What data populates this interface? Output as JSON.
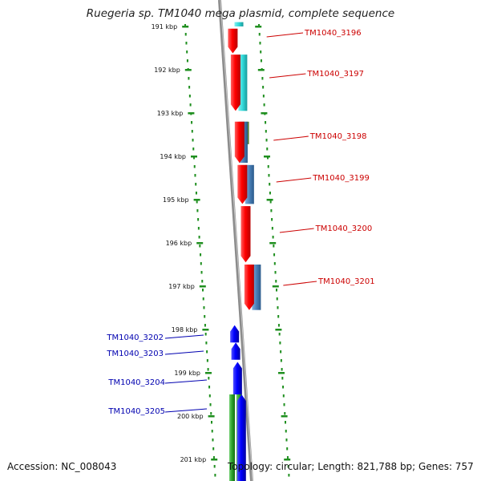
{
  "title": "Ruegeria sp. TM1040 mega plasmid, complete sequence",
  "footer": {
    "accession": "Accession: NC_008043",
    "summary": "Topology: circular; Length: 821,788 bp; Genes: 757"
  },
  "colors": {
    "backbone": "#8c8c8c",
    "tick": "#1f8f1f",
    "forward_label": "#cc0000",
    "reverse_label": "#0000b0",
    "red": "#ff0000",
    "cyan": "#30d8d8",
    "olive": "#6a9a3a",
    "steel": "#4a80b8",
    "blue": "#0000ff",
    "green": "#2aa02a"
  },
  "ticks": [
    {
      "kbp": 191,
      "label": "191 kbp"
    },
    {
      "kbp": 192,
      "label": "192 kbp"
    },
    {
      "kbp": 193,
      "label": "193 kbp"
    },
    {
      "kbp": 194,
      "label": "194 kbp"
    },
    {
      "kbp": 195,
      "label": "195 kbp"
    },
    {
      "kbp": 196,
      "label": "196 kbp"
    },
    {
      "kbp": 197,
      "label": "197 kbp"
    },
    {
      "kbp": 198,
      "label": "198 kbp"
    },
    {
      "kbp": 199,
      "label": "199 kbp"
    },
    {
      "kbp": 200,
      "label": "200 kbp"
    },
    {
      "kbp": 201,
      "label": "201 kbp"
    }
  ],
  "genes": [
    {
      "id": "TM1040_3196",
      "start": 191.05,
      "end": 191.62,
      "strand": "+"
    },
    {
      "id": "TM1040_3197",
      "start": 191.65,
      "end": 192.95,
      "strand": "+"
    },
    {
      "id": "TM1040_3198",
      "start": 193.2,
      "end": 194.15,
      "strand": "+"
    },
    {
      "id": "TM1040_3199",
      "start": 194.2,
      "end": 195.1,
      "strand": "+"
    },
    {
      "id": "TM1040_3200",
      "start": 195.15,
      "end": 196.45,
      "strand": "+"
    },
    {
      "id": "TM1040_3201",
      "start": 196.5,
      "end": 197.55,
      "strand": "+"
    },
    {
      "id": "TM1040_3202",
      "start": 197.9,
      "end": 198.3,
      "strand": "-"
    },
    {
      "id": "TM1040_3203",
      "start": 198.3,
      "end": 198.7,
      "strand": "-"
    },
    {
      "id": "TM1040_3204",
      "start": 198.75,
      "end": 199.5,
      "strand": "-"
    },
    {
      "id": "TM1040_3205",
      "start": 199.5,
      "end": 201.5,
      "strand": "-"
    }
  ],
  "features": [
    {
      "start": 190.9,
      "end": 191.0,
      "lane": 2,
      "color": "cyan"
    },
    {
      "start": 191.65,
      "end": 192.95,
      "lane": 2,
      "color": "cyan"
    },
    {
      "start": 193.2,
      "end": 193.72,
      "lane": 2,
      "color": "olive"
    },
    {
      "start": 193.2,
      "end": 194.15,
      "lane": 1.6,
      "color": "steel"
    },
    {
      "start": 194.2,
      "end": 195.1,
      "lane": 2,
      "color": "steel"
    },
    {
      "start": 196.5,
      "end": 197.55,
      "lane": 2,
      "color": "steel"
    },
    {
      "start": 199.5,
      "end": 201.5,
      "lane": -1.1,
      "color": "green"
    },
    {
      "start": 199.5,
      "end": 201.5,
      "lane": -1.9,
      "color": "green"
    }
  ]
}
